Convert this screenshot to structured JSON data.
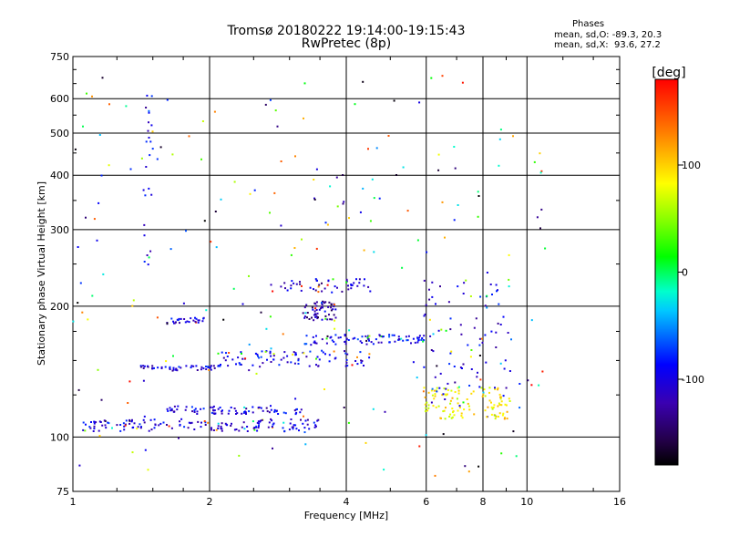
{
  "title": {
    "line1": "Tromsø 20180222 19:14:00-19:15:43",
    "line2": "RwPretec (8p)"
  },
  "stats": {
    "heading": "Phases",
    "line_o": "mean, sd,O: -89.3, 20.3",
    "line_x": "mean, sd,X:  93.6, 27.2"
  },
  "colors": {
    "grid": "#000000",
    "axis": "#000000",
    "background": "#ffffff"
  },
  "chart_data": {
    "type": "scatter",
    "xlabel": "Frequency [MHz]",
    "ylabel": "Stationary phase Virtual Height [km]",
    "x_scale": "log",
    "y_scale": "log",
    "xlim": [
      1,
      16
    ],
    "ylim": [
      75,
      750
    ],
    "x_ticks": [
      1,
      2,
      4,
      6,
      8,
      10,
      16
    ],
    "y_ticks": [
      75,
      100,
      200,
      300,
      400,
      500,
      600,
      750
    ],
    "grid": true,
    "colorbar": {
      "label": "[deg]",
      "range": [
        -180,
        180
      ],
      "ticks": [
        100,
        0,
        -100
      ]
    },
    "traces": [
      {
        "name": "o-mode E/F1 lower trace",
        "x_range": [
          1.05,
          3.5
        ],
        "y_range": [
          103,
          110
        ],
        "phase": -100,
        "points": 150
      },
      {
        "name": "lower trace 2",
        "x_range": [
          1.6,
          3.2
        ],
        "y_range": [
          113,
          118
        ],
        "phase": -100,
        "points": 80
      },
      {
        "name": "trace 145 km",
        "x_range": [
          1.4,
          2.1
        ],
        "y_range": [
          142,
          146
        ],
        "phase": -100,
        "points": 50
      },
      {
        "name": "trace 150 km",
        "x_range": [
          2.1,
          4.5
        ],
        "y_range": [
          145,
          158
        ],
        "phase": -95,
        "points": 90
      },
      {
        "name": "trace 165 km",
        "x_range": [
          3.2,
          6.0
        ],
        "y_range": [
          163,
          172
        ],
        "phase": -90,
        "points": 90
      },
      {
        "name": "trace 185 km",
        "x_range": [
          1.6,
          1.95
        ],
        "y_range": [
          182,
          188
        ],
        "phase": -100,
        "points": 30
      },
      {
        "name": "cluster 195 km",
        "x_range": [
          3.2,
          3.8
        ],
        "y_range": [
          185,
          205
        ],
        "phase": -120,
        "points": 60
      },
      {
        "name": "trace 220 km",
        "x_range": [
          2.6,
          4.6
        ],
        "y_range": [
          215,
          232
        ],
        "phase": -110,
        "points": 50
      },
      {
        "name": "x-mode trace",
        "x_range": [
          5.8,
          9.2
        ],
        "y_range": [
          110,
          130
        ],
        "phase": 90,
        "points": 110
      },
      {
        "name": "oblique rising trace",
        "x_range": [
          5.8,
          9.3
        ],
        "y_range": [
          120,
          230
        ],
        "phase": -100,
        "points": 80
      },
      {
        "name": "vertical streak 1.45 MHz",
        "x_range": [
          1.43,
          1.5
        ],
        "y_range": [
          240,
          610
        ],
        "phase": -100,
        "points": 25
      },
      {
        "name": "scattered echoes",
        "x_range": [
          1.0,
          11.0
        ],
        "y_range": [
          80,
          680
        ],
        "phase": 0,
        "points": 220
      }
    ]
  }
}
